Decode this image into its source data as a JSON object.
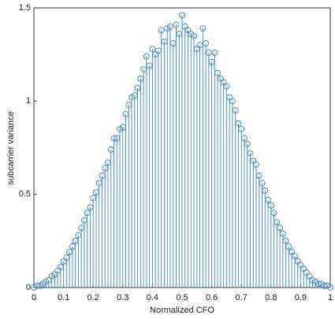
{
  "chart_data": {
    "type": "stem",
    "xlabel": "Normalized CFO",
    "ylabel": "subcarrier variance",
    "color": "#4a8fc8",
    "x": [
      0,
      0.01,
      0.02,
      0.03,
      0.04,
      0.05,
      0.06,
      0.07,
      0.08,
      0.09,
      0.1,
      0.11,
      0.12,
      0.13,
      0.14,
      0.15,
      0.16,
      0.17,
      0.18,
      0.19,
      0.2,
      0.21,
      0.22,
      0.23,
      0.24,
      0.25,
      0.26,
      0.27,
      0.28,
      0.29,
      0.3,
      0.31,
      0.32,
      0.33,
      0.34,
      0.35,
      0.36,
      0.37,
      0.38,
      0.39,
      0.4,
      0.41,
      0.42,
      0.43,
      0.44,
      0.45,
      0.46,
      0.47,
      0.48,
      0.49,
      0.5,
      0.51,
      0.52,
      0.53,
      0.54,
      0.55,
      0.56,
      0.57,
      0.58,
      0.59,
      0.6,
      0.61,
      0.62,
      0.63,
      0.64,
      0.65,
      0.66,
      0.67,
      0.68,
      0.69,
      0.7,
      0.71,
      0.72,
      0.73,
      0.74,
      0.75,
      0.76,
      0.77,
      0.78,
      0.79,
      0.8,
      0.81,
      0.82,
      0.83,
      0.84,
      0.85,
      0.86,
      0.87,
      0.88,
      0.89,
      0.9,
      0.91,
      0.92,
      0.93,
      0.94,
      0.95,
      0.96,
      0.97,
      0.98,
      0.99,
      1
    ],
    "values": [
      0,
      0.01,
      0.01,
      0.02,
      0.03,
      0.04,
      0.06,
      0.07,
      0.09,
      0.11,
      0.14,
      0.16,
      0.19,
      0.22,
      0.25,
      0.28,
      0.32,
      0.36,
      0.4,
      0.43,
      0.48,
      0.51,
      0.56,
      0.6,
      0.64,
      0.67,
      0.74,
      0.8,
      0.8,
      0.85,
      0.86,
      0.93,
      0.98,
      1.02,
      1.03,
      1.07,
      1.12,
      1.17,
      1.24,
      1.19,
      1.28,
      1.25,
      1.27,
      1.38,
      1.32,
      1.39,
      1.4,
      1.31,
      1.41,
      1.36,
      1.46,
      1.4,
      1.38,
      1.36,
      1.35,
      1.28,
      1.3,
      1.39,
      1.31,
      1.26,
      1.21,
      1.26,
      1.15,
      1.12,
      1.1,
      1.08,
      1.02,
      1,
      0.95,
      0.88,
      0.85,
      0.8,
      0.77,
      0.72,
      0.68,
      0.66,
      0.6,
      0.56,
      0.52,
      0.47,
      0.44,
      0.4,
      0.35,
      0.32,
      0.29,
      0.25,
      0.22,
      0.19,
      0.17,
      0.14,
      0.12,
      0.1,
      0.08,
      0.06,
      0.04,
      0.03,
      0.02,
      0.02,
      0.01,
      0.01,
      0
    ],
    "xlim": [
      0,
      1
    ],
    "xticks": [
      0,
      0.1,
      0.2,
      0.3,
      0.4,
      0.5,
      0.6,
      0.7,
      0.8,
      0.9,
      1
    ],
    "ylim": [
      0,
      1.5
    ],
    "yticks": [
      0,
      0.5,
      1,
      1.5
    ]
  }
}
